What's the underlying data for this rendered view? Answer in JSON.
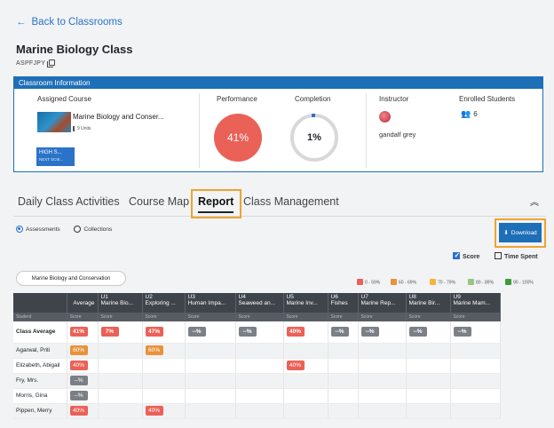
{
  "back_label": "Back to Classrooms",
  "class_title": "Marine Biology Class",
  "class_code": "ASPFJPY",
  "info": {
    "header": "Classroom Information",
    "assigned_course_label": "Assigned Course",
    "course_name": "Marine Biology and Conser...",
    "units": "9 Units",
    "level_badge": "HIGH S...",
    "level_sub": "NEXT SCIE...",
    "performance_label": "Performance",
    "performance_value": "41%",
    "completion_label": "Completion",
    "completion_value": "1%",
    "instructor_label": "Instructor",
    "instructor_name": "gandalf grey",
    "enrolled_label": "Enrolled Students",
    "enrolled_count": "6"
  },
  "tabs": [
    "Daily Class Activities",
    "Course Map",
    "Report",
    "Class Management"
  ],
  "active_tab": "Report",
  "radio": {
    "assessments": "Assessments",
    "collections": "Collections"
  },
  "download_label": "Download",
  "checks": {
    "score": "Score",
    "time_spent": "Time Spent"
  },
  "course_pill": "Marine Biology and Conservation",
  "legend": [
    {
      "label": "0 - 59%",
      "color": "#ea6157"
    },
    {
      "label": "60 - 69%",
      "color": "#e8923c"
    },
    {
      "label": "70 - 79%",
      "color": "#f3b63b"
    },
    {
      "label": "80 - 89%",
      "color": "#9bc47e"
    },
    {
      "label": "90 - 100%",
      "color": "#3f9b3a"
    }
  ],
  "table": {
    "student_header": "Student",
    "average_header": "Average",
    "score_sub": "Score",
    "units": [
      {
        "code": "U1",
        "name": "Marine Bio..."
      },
      {
        "code": "U2",
        "name": "Exploring ..."
      },
      {
        "code": "U3",
        "name": "Human Impa..."
      },
      {
        "code": "U4",
        "name": "Seaweed an..."
      },
      {
        "code": "U5",
        "name": "Marine Inv..."
      },
      {
        "code": "U6",
        "name": "Fishes"
      },
      {
        "code": "U7",
        "name": "Marine Rep..."
      },
      {
        "code": "U8",
        "name": "Marine Bir..."
      },
      {
        "code": "U9",
        "name": "Marine Mam..."
      }
    ],
    "class_average": {
      "name": "Class Average",
      "average": "41%",
      "scores": [
        "7%",
        "47%",
        "--%",
        "--%",
        "40%",
        "--%",
        "--%",
        "--%",
        "--%"
      ]
    },
    "rows": [
      {
        "name": "Agarwal, Priti",
        "average": "60%",
        "scores": [
          "",
          "60%",
          "",
          "",
          "",
          "",
          "",
          "",
          ""
        ]
      },
      {
        "name": "Elizabeth, Abigail",
        "average": "40%",
        "scores": [
          "",
          "",
          "",
          "",
          "40%",
          "",
          "",
          "",
          ""
        ]
      },
      {
        "name": "Fry, Mrs.",
        "average": "--%",
        "scores": [
          "",
          "",
          "",
          "",
          "",
          "",
          "",
          "",
          ""
        ]
      },
      {
        "name": "Morris, Gina",
        "average": "--%",
        "scores": [
          "",
          "",
          "",
          "",
          "",
          "",
          "",
          "",
          ""
        ]
      },
      {
        "name": "Pippen, Merry",
        "average": "40%",
        "scores": [
          "",
          "40%",
          "",
          "",
          "",
          "",
          "",
          "",
          ""
        ]
      }
    ]
  }
}
